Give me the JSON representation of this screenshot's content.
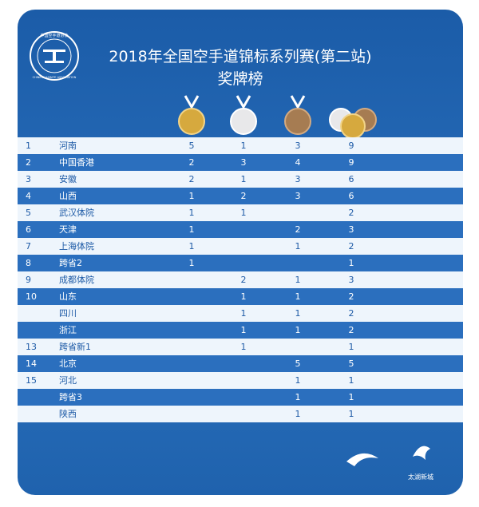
{
  "header": {
    "logo_cn": "中国空手道协会",
    "logo_en": "CHINESE KARATE ASSOCIATION",
    "title": "2018年全国空手道锦标系列赛(第二站)",
    "subtitle": "奖牌榜"
  },
  "table": {
    "rows": [
      [
        1,
        "河南",
        5,
        1,
        3,
        9
      ],
      [
        2,
        "中国香港",
        2,
        3,
        4,
        9
      ],
      [
        3,
        "安徽",
        2,
        1,
        3,
        6
      ],
      [
        4,
        "山西",
        1,
        2,
        3,
        6
      ],
      [
        5,
        "武汉体院",
        1,
        1,
        null,
        2
      ],
      [
        6,
        "天津",
        1,
        null,
        2,
        3
      ],
      [
        7,
        "上海体院",
        1,
        null,
        1,
        2
      ],
      [
        8,
        "跨省2",
        1,
        null,
        null,
        1
      ],
      [
        9,
        "成都体院",
        null,
        2,
        1,
        3
      ],
      [
        10,
        "山东",
        null,
        1,
        1,
        2
      ],
      [
        null,
        "四川",
        null,
        1,
        1,
        2
      ],
      [
        null,
        "浙江",
        null,
        1,
        1,
        2
      ],
      [
        13,
        "跨省新1",
        null,
        1,
        null,
        1
      ],
      [
        14,
        "北京",
        null,
        null,
        5,
        5
      ],
      [
        15,
        "河北",
        null,
        null,
        1,
        1
      ],
      [
        null,
        "跨省3",
        null,
        null,
        1,
        1
      ],
      [
        null,
        "陕西",
        null,
        null,
        1,
        1
      ]
    ]
  },
  "footer": {
    "brand": "太湖新城"
  }
}
